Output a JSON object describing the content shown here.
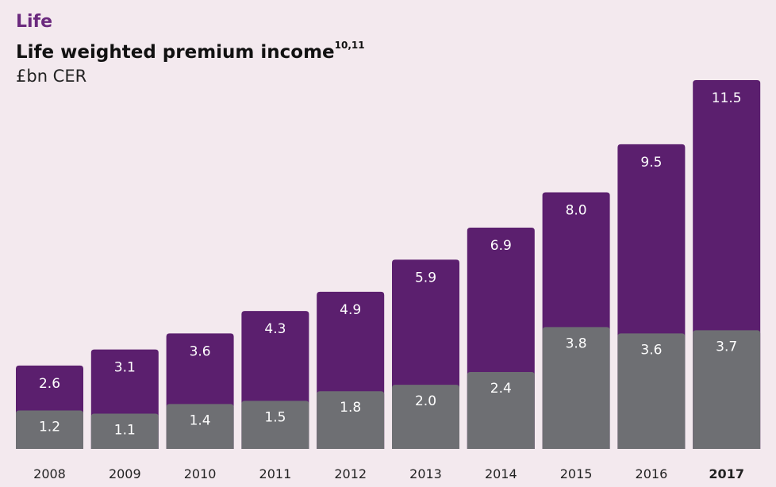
{
  "header": {
    "section": "Life",
    "title": "Life weighted premium income",
    "title_footnote": "10,11",
    "unit": "£bn CER"
  },
  "colors": {
    "total": "#5b1f6e",
    "base": "#6e6f73",
    "label_light": "#ffffff",
    "axis_text": "#222222"
  },
  "chart_data": {
    "type": "bar",
    "title": "Life weighted premium income",
    "ylabel": "£bn CER",
    "categories": [
      "2008",
      "2009",
      "2010",
      "2011",
      "2012",
      "2013",
      "2014",
      "2015",
      "2016",
      "2017"
    ],
    "highlighted_category": "2017",
    "series": [
      {
        "values": [
          2.6,
          3.1,
          3.6,
          4.3,
          4.9,
          5.9,
          6.9,
          8.0,
          9.5,
          11.5
        ]
      },
      {
        "values": [
          1.2,
          1.1,
          1.4,
          1.5,
          1.8,
          2.0,
          2.4,
          3.8,
          3.6,
          3.7
        ]
      }
    ],
    "ylim": [
      0,
      11.5
    ],
    "grid": false,
    "legend": "none"
  }
}
